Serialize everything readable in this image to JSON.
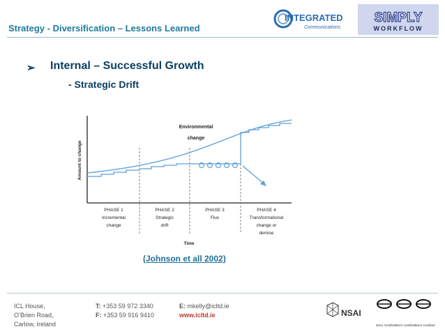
{
  "header": {
    "title": "Strategy - Diversification – Lessons Learned",
    "logo_integrated": {
      "main": "INTEGRATED",
      "sub": "Communications"
    },
    "logo_simply": {
      "main": "SIMPLY",
      "sub": "WORKFLOW"
    }
  },
  "content": {
    "bullet_icon": "arrow-bullet-icon",
    "main_point": "Internal – Successful Growth",
    "sub_point": "- Strategic Drift",
    "citation": "(Johnson et all 2002)"
  },
  "diagram": {
    "y_axis_label": "Amount to change",
    "x_axis_label": "Time",
    "env_label_line1": "Environmental",
    "env_label_line2": "change",
    "phases": [
      {
        "title": "PHASE 1",
        "line1": "Incremental",
        "line2": "change",
        "line3": ""
      },
      {
        "title": "PHASE 2",
        "line1": "Strategic",
        "line2": "drift",
        "line3": ""
      },
      {
        "title": "PHASE 3",
        "line1": "Flux",
        "line2": "",
        "line3": ""
      },
      {
        "title": "PHASE 4",
        "line1": "Transformational",
        "line2": "change or",
        "line3": "demise"
      }
    ]
  },
  "footer": {
    "address": [
      "ICL House,",
      "O’Brien Road,",
      "Carlow, Ireland"
    ],
    "phone_label": "T:",
    "phone": "+353 59 972 3340",
    "fax_label": "F:",
    "fax": "+353 59 916 9410",
    "email_label": "E:",
    "email": "mkelly@icltd.ie",
    "website": "www.icltd.ie",
    "nsai_label": "NSAI",
    "cert_label": "NSAI Certified"
  },
  "colors": {
    "title": "#1f7a9c",
    "heading": "#0b3f61",
    "diagram_line": "#5b9fd6",
    "link": "#c0392b"
  }
}
